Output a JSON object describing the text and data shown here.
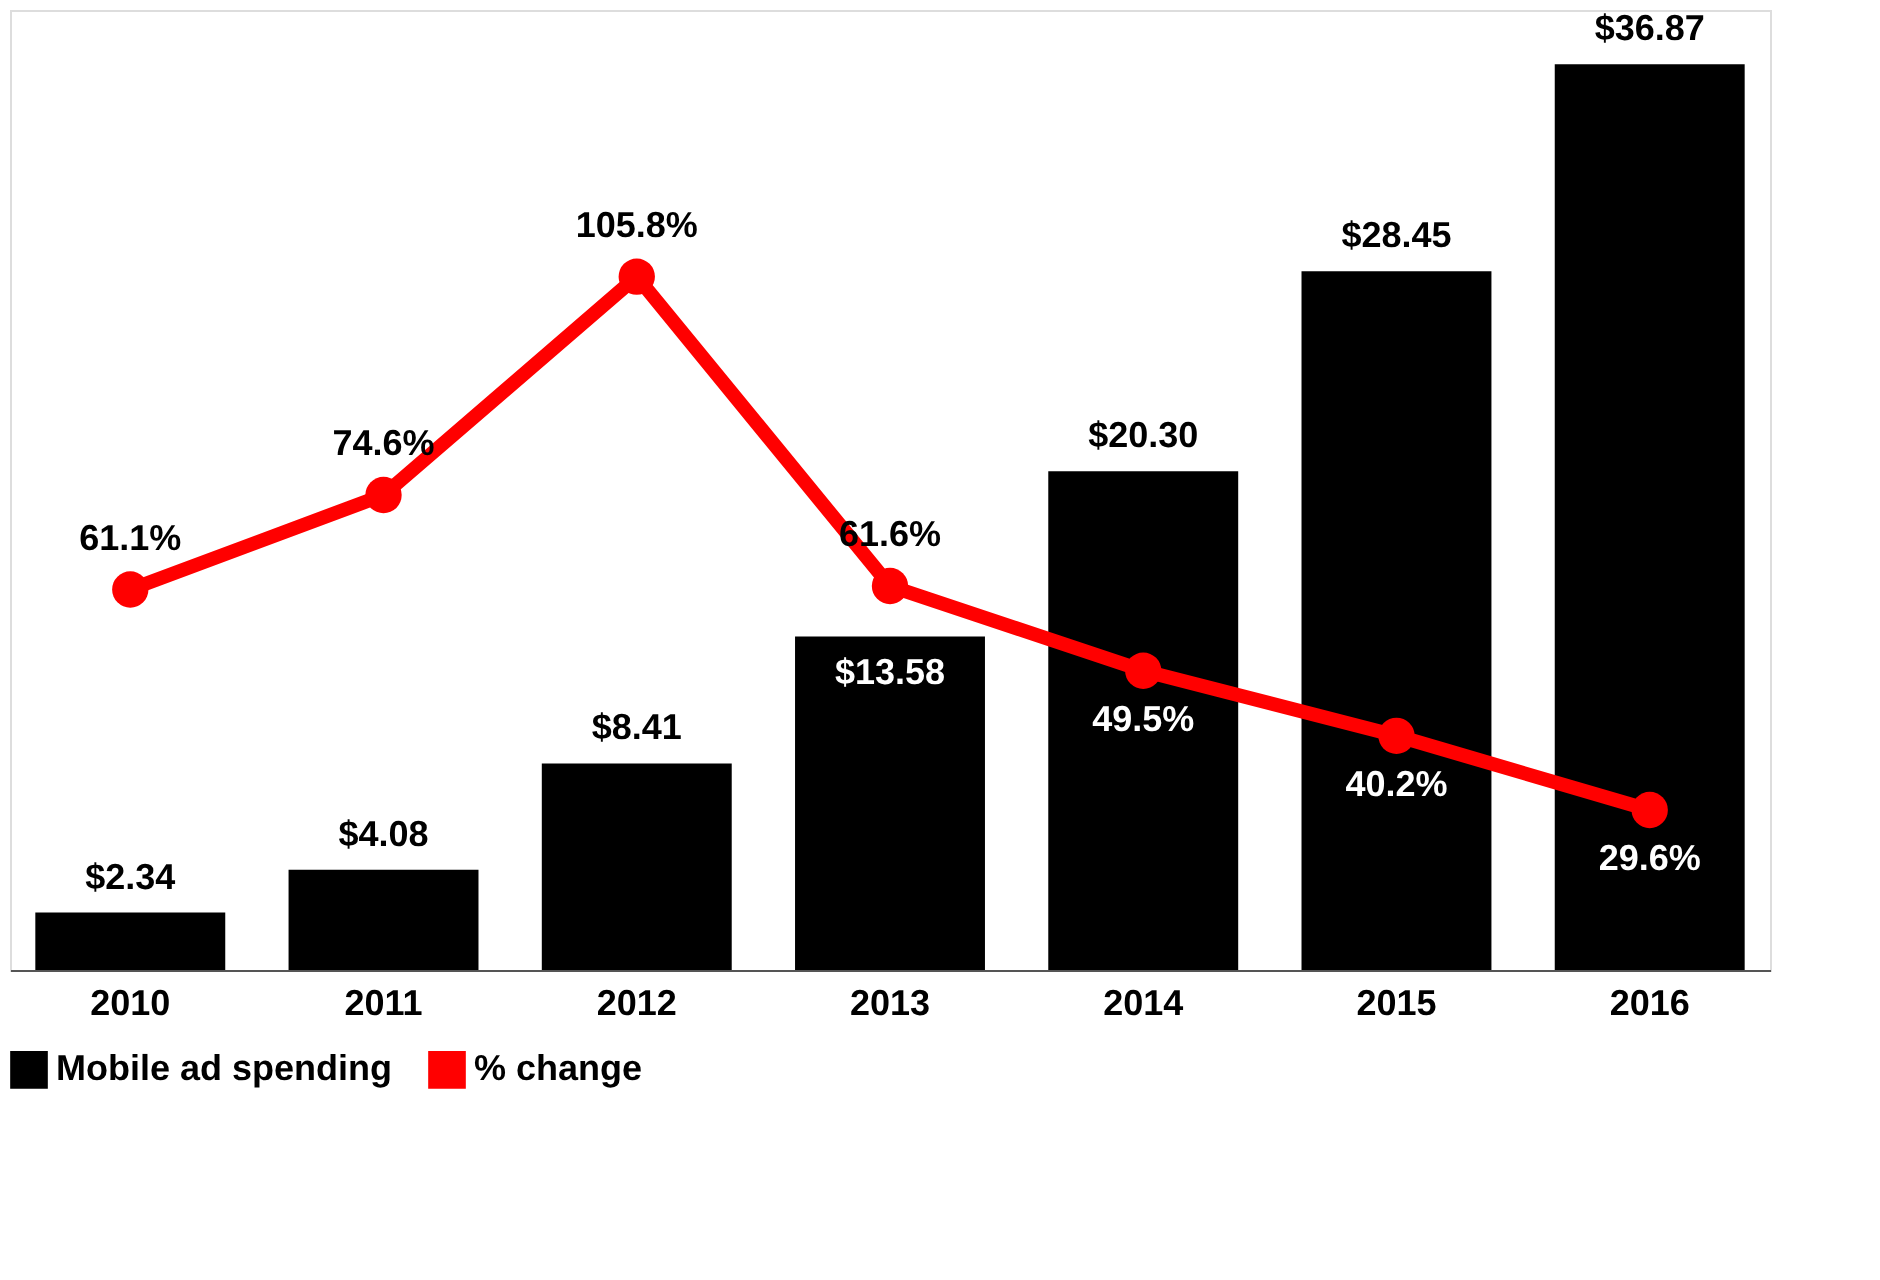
{
  "chart_data": {
    "type": "bar",
    "categories": [
      "2010",
      "2011",
      "2012",
      "2013",
      "2014",
      "2015",
      "2016"
    ],
    "legend": "bottom left",
    "tick_labels": "x",
    "data_labels": true,
    "series": [
      {
        "name": "Mobile ad spending",
        "color": "#000000",
        "values": [
          2.34,
          4.08,
          8.41,
          13.58,
          20.3,
          28.45,
          36.87
        ],
        "value_labels": [
          "$2.34",
          "$4.08",
          "$8.41",
          "$13.58",
          "$20.30",
          "$28.45",
          "$36.87"
        ]
      },
      {
        "name": "% change",
        "type": "line",
        "axis": "y2",
        "color": "#ff0000",
        "marker": "circle",
        "line_style": "solid",
        "values": [
          61.1,
          74.6,
          105.8,
          61.6,
          49.5,
          40.2,
          29.6
        ],
        "value_labels": [
          "61.1%",
          "74.6%",
          "105.8%",
          "61.6%",
          "49.5%",
          "40.2%",
          "29.6%"
        ]
      }
    ]
  }
}
